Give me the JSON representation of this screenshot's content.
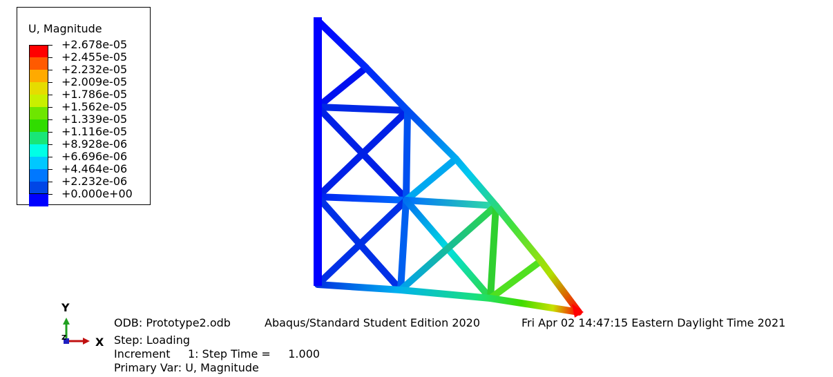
{
  "legend": {
    "title": "U, Magnitude",
    "values": [
      "+2.678e-05",
      "+2.455e-05",
      "+2.232e-05",
      "+2.009e-05",
      "+1.786e-05",
      "+1.562e-05",
      "+1.339e-05",
      "+1.116e-05",
      "+8.928e-06",
      "+6.696e-06",
      "+4.464e-06",
      "+2.232e-06",
      "+0.000e+00"
    ],
    "colors": [
      "#ff0000",
      "#ff5a00",
      "#ffaa00",
      "#e6dc00",
      "#c8f000",
      "#6ee600",
      "#30dc00",
      "#19e678",
      "#00ffe6",
      "#00c8ff",
      "#0078ff",
      "#0046e6",
      "#0000ff"
    ]
  },
  "axes": {
    "y": "Y",
    "x": "X",
    "z": "Z"
  },
  "info": {
    "odb": "ODB: Prototype2.odb",
    "edition": "Abaqus/Standard Student Edition 2020",
    "timestamp": "Fri Apr 02 14:47:15 Eastern Daylight Time 2021",
    "step": "Step: Loading",
    "increment": "Increment     1: Step Time =     1.000",
    "primary_var": "Primary Var: U, Magnitude"
  }
}
